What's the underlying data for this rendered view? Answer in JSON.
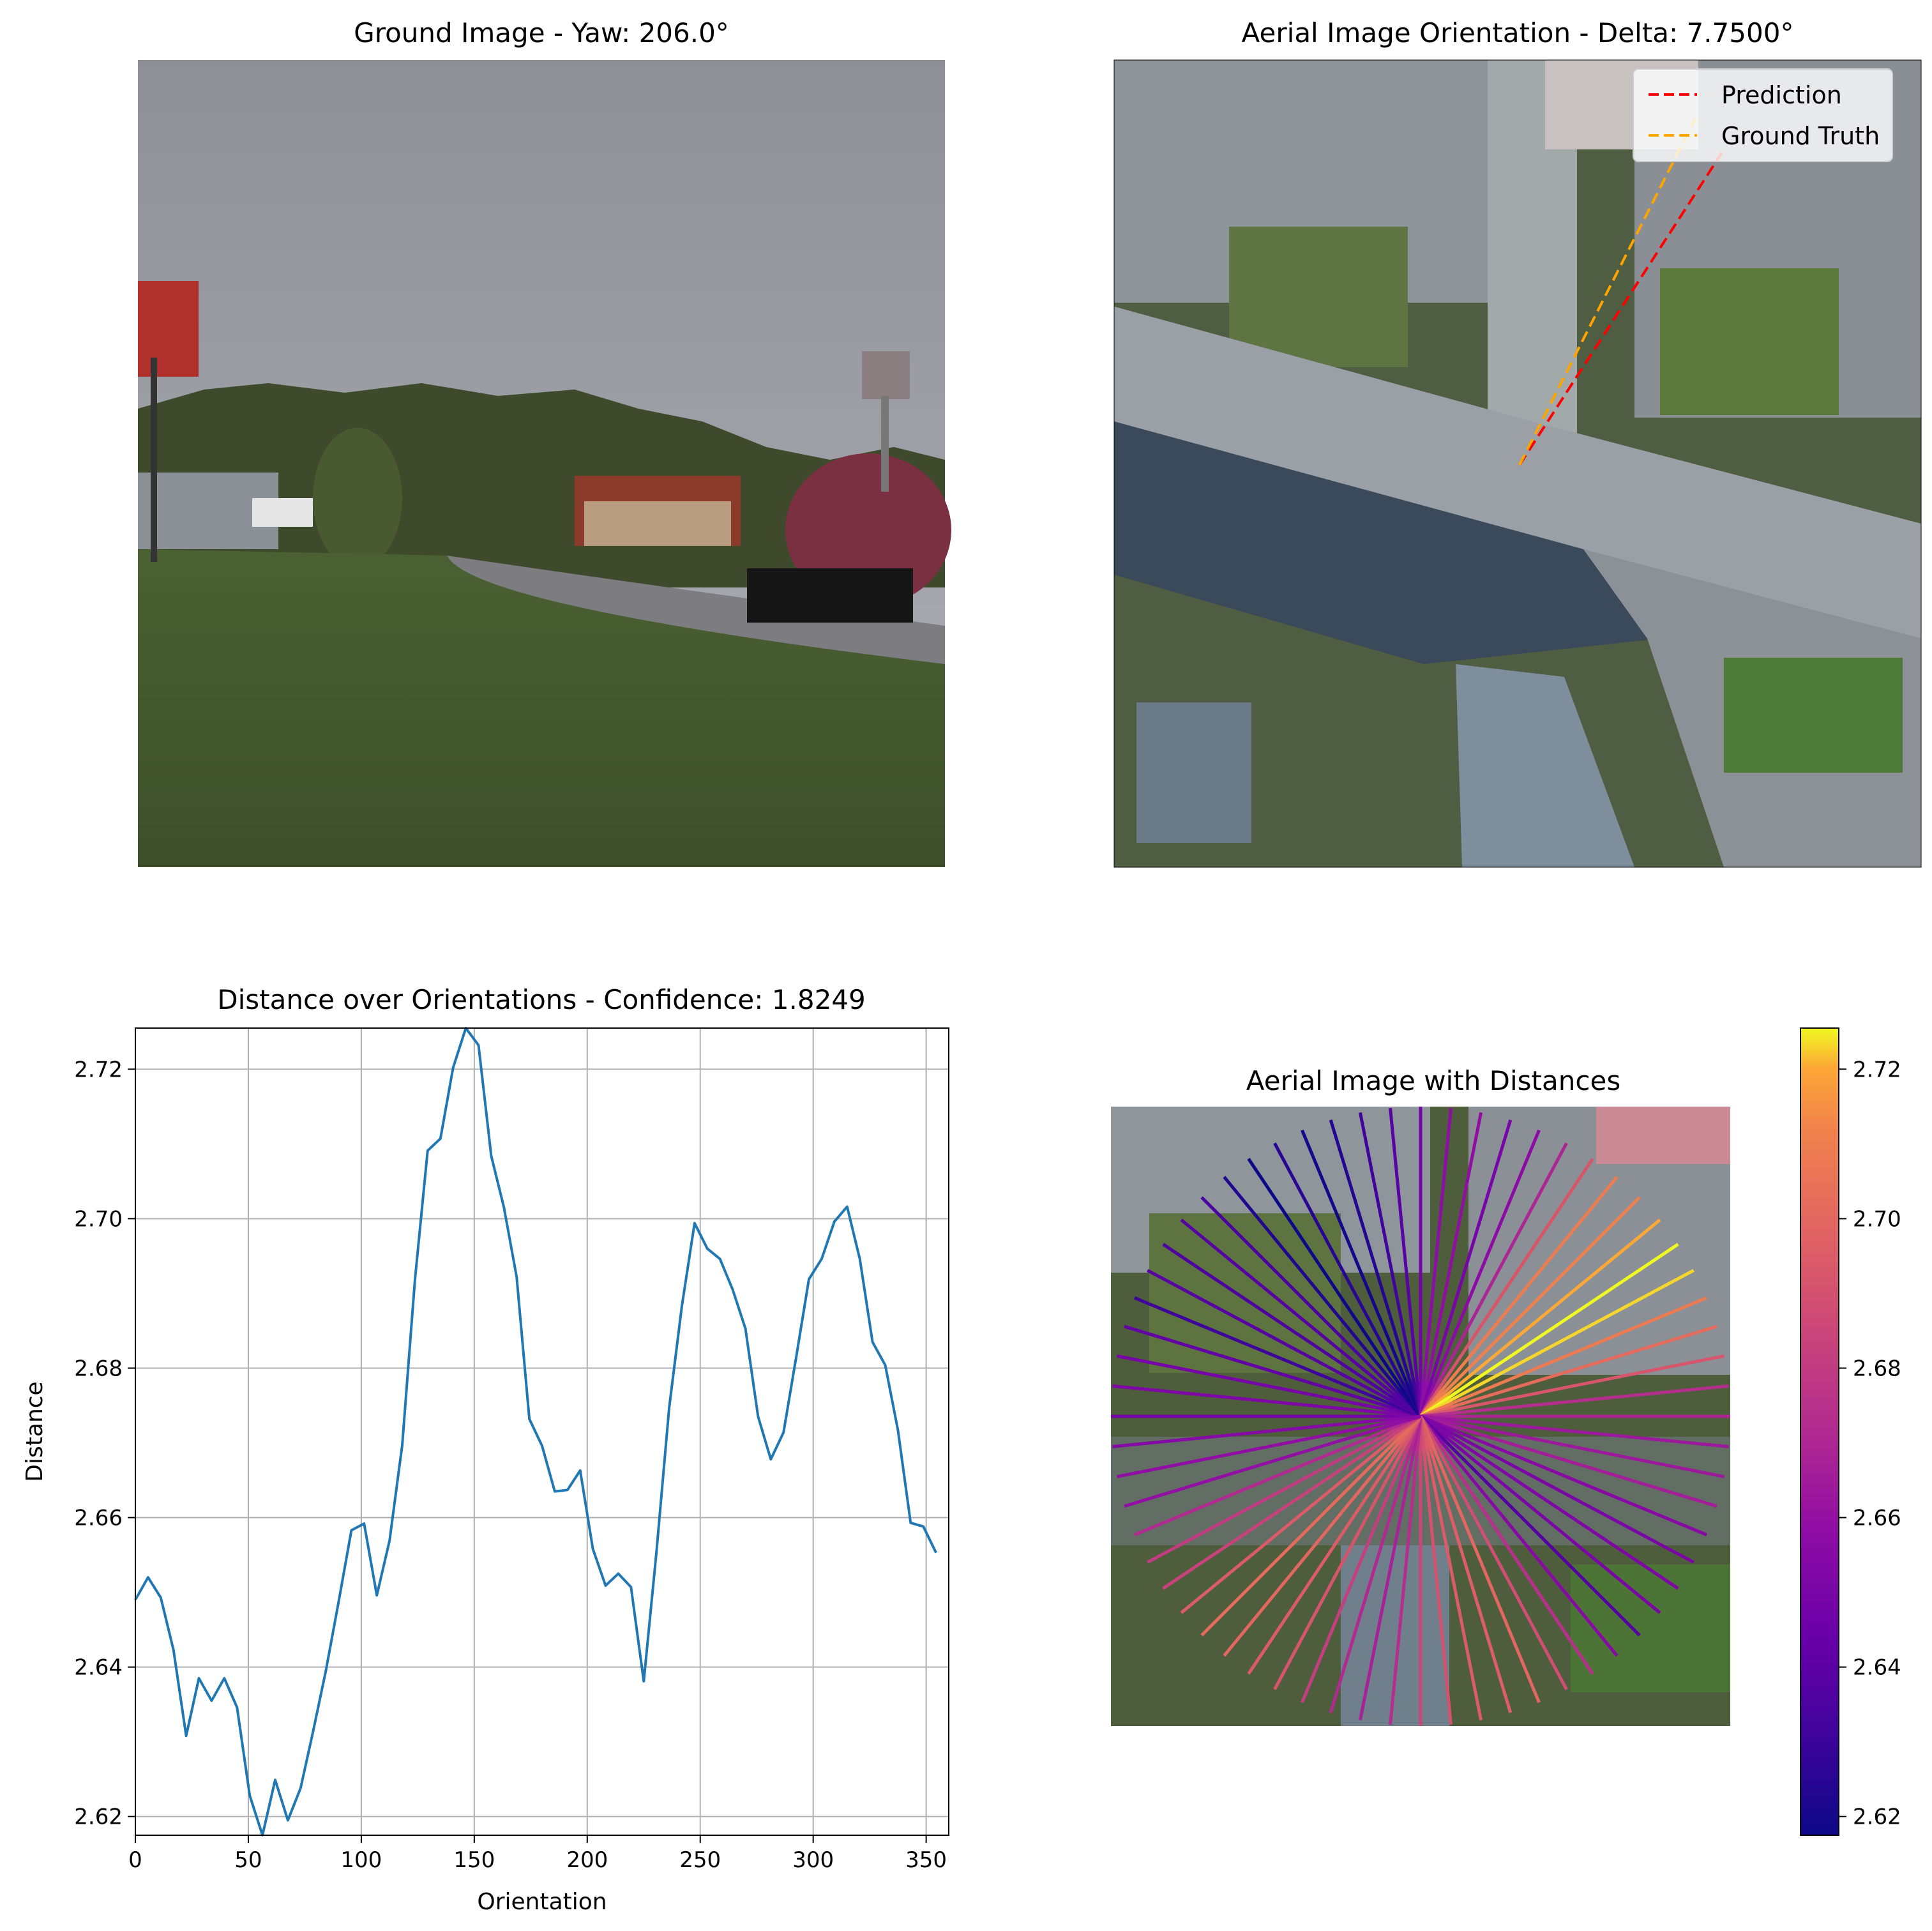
{
  "panels": {
    "ground": {
      "title": "Ground Image - Yaw: 206.0°"
    },
    "aerial_orientation": {
      "title": "Aerial Image Orientation - Delta: 7.7500°",
      "legend": [
        {
          "label": "Prediction",
          "color": "#ff0000",
          "style": "dashed"
        },
        {
          "label": "Ground Truth",
          "color": "#ffa500",
          "style": "dashed"
        }
      ]
    },
    "aerial_distances": {
      "title": "Aerial Image with Distances",
      "colormap": "plasma"
    }
  },
  "chart_data": [
    {
      "type": "line",
      "title": "Distance over Orientations - Confidence: 1.8249",
      "xlabel": "Orientation",
      "ylabel": "Distance",
      "xlim": [
        0,
        360
      ],
      "ylim": [
        2.6175,
        2.7255
      ],
      "xticks": [
        "0",
        "50",
        "100",
        "150",
        "200",
        "250",
        "300",
        "350"
      ],
      "yticks": [
        "2.62",
        "2.64",
        "2.66",
        "2.68",
        "2.70",
        "2.72"
      ],
      "grid": true,
      "line_color": "#1f77b4",
      "series": [
        {
          "x": [
            0,
            5.625,
            11.25,
            16.875,
            22.5,
            28.125,
            33.75,
            39.375,
            45,
            50.625,
            56.25,
            61.875,
            67.5,
            73.125,
            78.75,
            84.375,
            90,
            95.625,
            101.25,
            106.875,
            112.5,
            118.125,
            123.75,
            129.375,
            135,
            140.625,
            146.25,
            151.875,
            157.5,
            163.125,
            168.75,
            174.375,
            180,
            185.625,
            191.25,
            196.875,
            202.5,
            208.125,
            213.75,
            219.375,
            225,
            230.625,
            236.25,
            241.875,
            247.5,
            253.125,
            258.75,
            264.375,
            270,
            275.625,
            281.25,
            286.875,
            292.5,
            298.125,
            303.75,
            309.375,
            315,
            320.625,
            326.25,
            331.875,
            337.5,
            343.125,
            348.75,
            354.375
          ],
          "values": [
            2.649,
            2.652,
            2.6493,
            2.6423,
            2.6308,
            2.6385,
            2.6355,
            2.6385,
            2.6346,
            2.6228,
            2.6175,
            2.6249,
            2.6195,
            2.6238,
            2.6315,
            2.6396,
            2.6488,
            2.6583,
            2.6592,
            2.6496,
            2.6569,
            2.6697,
            2.6918,
            2.7091,
            2.7107,
            2.7202,
            2.7255,
            2.7232,
            2.7084,
            2.7015,
            2.6922,
            2.6732,
            2.6696,
            2.6635,
            2.6637,
            2.6663,
            2.6558,
            2.6509,
            2.6525,
            2.6507,
            2.6381,
            2.6554,
            2.6747,
            2.6883,
            2.6994,
            2.696,
            2.6946,
            2.6905,
            2.6853,
            2.6735,
            2.6678,
            2.6714,
            2.6815,
            2.6919,
            2.6946,
            2.6996,
            2.7016,
            2.6946,
            2.6835,
            2.6804,
            2.6717,
            2.6593,
            2.6588,
            2.6553
          ]
        }
      ]
    },
    {
      "type": "colorbar",
      "colormap": "plasma",
      "ylim": [
        2.6175,
        2.7255
      ],
      "yticks": [
        "2.62",
        "2.64",
        "2.66",
        "2.68",
        "2.70",
        "2.72"
      ]
    }
  ]
}
